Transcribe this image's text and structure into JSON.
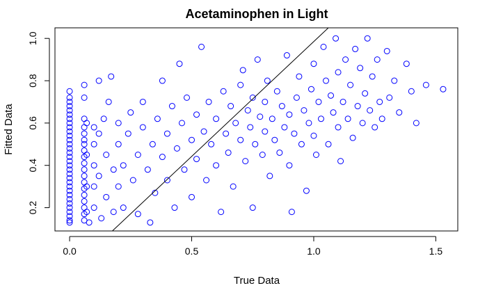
{
  "chart_data": {
    "type": "scatter",
    "title": "Acetaminophen in Light",
    "xlabel": "True Data",
    "ylabel": "Fitted Data",
    "xlim": [
      -0.06,
      1.59
    ],
    "ylim": [
      0.09,
      1.05
    ],
    "x_ticks": [
      0.0,
      0.5,
      1.0,
      1.5
    ],
    "x_tick_labels": [
      "0.0",
      "0.5",
      "1.0",
      "1.5"
    ],
    "y_ticks": [
      0.2,
      0.4,
      0.6,
      0.8,
      1.0
    ],
    "y_tick_labels": [
      "0.2",
      "0.4",
      "0.6",
      "0.8",
      "1.0"
    ],
    "grid": false,
    "marker": "open-circle",
    "point_color": "#0000ff",
    "reference_line": {
      "intercept": -0.1,
      "slope": 1.085,
      "color": "#000000"
    },
    "series": [
      {
        "points": [
          [
            0.0,
            0.75
          ],
          [
            0.0,
            0.72
          ],
          [
            0.0,
            0.7
          ],
          [
            0.0,
            0.68
          ],
          [
            0.0,
            0.66
          ],
          [
            0.0,
            0.64
          ],
          [
            0.0,
            0.62
          ],
          [
            0.0,
            0.6
          ],
          [
            0.0,
            0.58
          ],
          [
            0.0,
            0.56
          ],
          [
            0.0,
            0.54
          ],
          [
            0.0,
            0.52
          ],
          [
            0.0,
            0.5
          ],
          [
            0.0,
            0.48
          ],
          [
            0.0,
            0.46
          ],
          [
            0.0,
            0.44
          ],
          [
            0.0,
            0.42
          ],
          [
            0.0,
            0.4
          ],
          [
            0.0,
            0.38
          ],
          [
            0.0,
            0.36
          ],
          [
            0.0,
            0.34
          ],
          [
            0.0,
            0.32
          ],
          [
            0.0,
            0.3
          ],
          [
            0.0,
            0.28
          ],
          [
            0.0,
            0.26
          ],
          [
            0.0,
            0.24
          ],
          [
            0.0,
            0.22
          ],
          [
            0.0,
            0.2
          ],
          [
            0.0,
            0.18
          ],
          [
            0.0,
            0.16
          ],
          [
            0.0,
            0.14
          ],
          [
            0.0,
            0.13
          ],
          [
            0.06,
            0.78
          ],
          [
            0.06,
            0.72
          ],
          [
            0.06,
            0.62
          ],
          [
            0.06,
            0.58
          ],
          [
            0.06,
            0.55
          ],
          [
            0.06,
            0.52
          ],
          [
            0.06,
            0.5
          ],
          [
            0.06,
            0.47
          ],
          [
            0.06,
            0.44
          ],
          [
            0.06,
            0.41
          ],
          [
            0.06,
            0.38
          ],
          [
            0.06,
            0.35
          ],
          [
            0.06,
            0.32
          ],
          [
            0.06,
            0.29
          ],
          [
            0.06,
            0.26
          ],
          [
            0.06,
            0.23
          ],
          [
            0.06,
            0.2
          ],
          [
            0.06,
            0.17
          ],
          [
            0.06,
            0.14
          ],
          [
            0.07,
            0.6
          ],
          [
            0.07,
            0.45
          ],
          [
            0.07,
            0.3
          ],
          [
            0.07,
            0.18
          ],
          [
            0.08,
            0.13
          ],
          [
            0.1,
            0.58
          ],
          [
            0.1,
            0.5
          ],
          [
            0.1,
            0.4
          ],
          [
            0.1,
            0.3
          ],
          [
            0.1,
            0.2
          ],
          [
            0.12,
            0.8
          ],
          [
            0.12,
            0.55
          ],
          [
            0.12,
            0.35
          ],
          [
            0.13,
            0.15
          ],
          [
            0.14,
            0.62
          ],
          [
            0.15,
            0.45
          ],
          [
            0.15,
            0.25
          ],
          [
            0.16,
            0.7
          ],
          [
            0.17,
            0.82
          ],
          [
            0.18,
            0.38
          ],
          [
            0.18,
            0.18
          ],
          [
            0.2,
            0.6
          ],
          [
            0.2,
            0.5
          ],
          [
            0.2,
            0.3
          ],
          [
            0.22,
            0.4
          ],
          [
            0.22,
            0.2
          ],
          [
            0.24,
            0.55
          ],
          [
            0.25,
            0.65
          ],
          [
            0.26,
            0.33
          ],
          [
            0.28,
            0.45
          ],
          [
            0.28,
            0.17
          ],
          [
            0.3,
            0.7
          ],
          [
            0.3,
            0.58
          ],
          [
            0.32,
            0.38
          ],
          [
            0.33,
            0.13
          ],
          [
            0.34,
            0.5
          ],
          [
            0.35,
            0.27
          ],
          [
            0.36,
            0.62
          ],
          [
            0.38,
            0.8
          ],
          [
            0.38,
            0.44
          ],
          [
            0.4,
            0.55
          ],
          [
            0.4,
            0.33
          ],
          [
            0.42,
            0.68
          ],
          [
            0.43,
            0.2
          ],
          [
            0.44,
            0.48
          ],
          [
            0.45,
            0.88
          ],
          [
            0.46,
            0.6
          ],
          [
            0.47,
            0.38
          ],
          [
            0.48,
            0.72
          ],
          [
            0.5,
            0.52
          ],
          [
            0.5,
            0.25
          ],
          [
            0.52,
            0.64
          ],
          [
            0.52,
            0.43
          ],
          [
            0.54,
            0.96
          ],
          [
            0.55,
            0.56
          ],
          [
            0.56,
            0.33
          ],
          [
            0.57,
            0.7
          ],
          [
            0.58,
            0.5
          ],
          [
            0.6,
            0.62
          ],
          [
            0.6,
            0.4
          ],
          [
            0.62,
            0.18
          ],
          [
            0.63,
            0.75
          ],
          [
            0.64,
            0.55
          ],
          [
            0.65,
            0.46
          ],
          [
            0.66,
            0.68
          ],
          [
            0.67,
            0.3
          ],
          [
            0.68,
            0.6
          ],
          [
            0.7,
            0.78
          ],
          [
            0.7,
            0.52
          ],
          [
            0.71,
            0.85
          ],
          [
            0.72,
            0.42
          ],
          [
            0.73,
            0.66
          ],
          [
            0.74,
            0.58
          ],
          [
            0.75,
            0.72
          ],
          [
            0.75,
            0.2
          ],
          [
            0.76,
            0.5
          ],
          [
            0.77,
            0.9
          ],
          [
            0.78,
            0.63
          ],
          [
            0.79,
            0.45
          ],
          [
            0.8,
            0.7
          ],
          [
            0.8,
            0.56
          ],
          [
            0.81,
            0.8
          ],
          [
            0.82,
            0.35
          ],
          [
            0.83,
            0.62
          ],
          [
            0.84,
            0.52
          ],
          [
            0.85,
            0.75
          ],
          [
            0.86,
            0.46
          ],
          [
            0.87,
            0.68
          ],
          [
            0.88,
            0.58
          ],
          [
            0.89,
            0.92
          ],
          [
            0.9,
            0.4
          ],
          [
            0.9,
            0.64
          ],
          [
            0.91,
            0.18
          ],
          [
            0.92,
            0.55
          ],
          [
            0.93,
            0.72
          ],
          [
            0.94,
            0.82
          ],
          [
            0.95,
            0.5
          ],
          [
            0.96,
            0.66
          ],
          [
            0.97,
            0.28
          ],
          [
            0.98,
            0.6
          ],
          [
            0.99,
            0.76
          ],
          [
            1.0,
            0.88
          ],
          [
            1.0,
            0.54
          ],
          [
            1.01,
            0.45
          ],
          [
            1.02,
            0.7
          ],
          [
            1.03,
            0.62
          ],
          [
            1.04,
            0.96
          ],
          [
            1.05,
            0.8
          ],
          [
            1.06,
            0.5
          ],
          [
            1.07,
            0.73
          ],
          [
            1.08,
            0.65
          ],
          [
            1.09,
            1.0
          ],
          [
            1.1,
            0.58
          ],
          [
            1.1,
            0.84
          ],
          [
            1.11,
            0.42
          ],
          [
            1.12,
            0.7
          ],
          [
            1.13,
            0.9
          ],
          [
            1.14,
            0.62
          ],
          [
            1.15,
            0.78
          ],
          [
            1.16,
            0.53
          ],
          [
            1.17,
            0.95
          ],
          [
            1.18,
            0.68
          ],
          [
            1.19,
            0.86
          ],
          [
            1.2,
            0.6
          ],
          [
            1.21,
            0.74
          ],
          [
            1.22,
            1.0
          ],
          [
            1.23,
            0.66
          ],
          [
            1.24,
            0.82
          ],
          [
            1.25,
            0.58
          ],
          [
            1.26,
            0.9
          ],
          [
            1.27,
            0.7
          ],
          [
            1.28,
            0.62
          ],
          [
            1.3,
            0.94
          ],
          [
            1.31,
            0.72
          ],
          [
            1.33,
            0.8
          ],
          [
            1.35,
            0.65
          ],
          [
            1.38,
            0.88
          ],
          [
            1.4,
            0.75
          ],
          [
            1.42,
            0.6
          ],
          [
            1.46,
            0.78
          ],
          [
            1.53,
            0.76
          ]
        ]
      }
    ]
  }
}
